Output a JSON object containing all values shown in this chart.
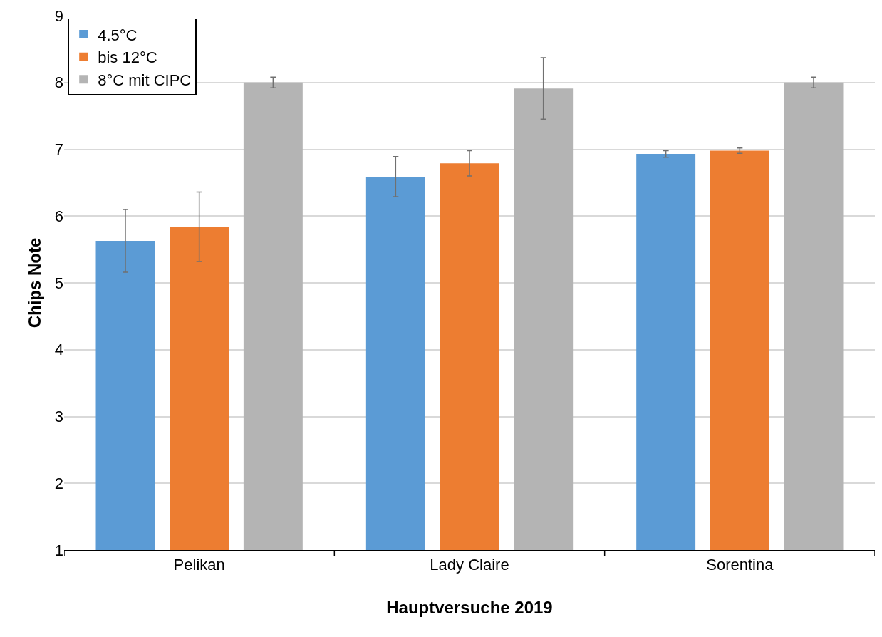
{
  "chart_data": {
    "type": "bar",
    "xlabel": "Hauptversuche 2019",
    "ylabel": "Chips Note",
    "categories": [
      "Pelikan",
      "Lady Claire",
      "Sorentina"
    ],
    "series": [
      {
        "name": "4.5°C",
        "color": "#5b9bd5",
        "values": [
          5.63,
          6.59,
          6.93
        ],
        "errors": [
          0.47,
          0.3,
          0.05
        ]
      },
      {
        "name": "bis 12°C",
        "color": "#ed7d31",
        "values": [
          5.84,
          6.79,
          6.98
        ],
        "errors": [
          0.52,
          0.19,
          0.04
        ]
      },
      {
        "name": "8°C mit CIPC",
        "color": "#b4b4b4",
        "values": [
          8.0,
          7.91,
          8.0
        ],
        "errors": [
          0.08,
          0.46,
          0.08
        ]
      }
    ],
    "ylim": [
      1,
      9
    ],
    "yticks": [
      1,
      2,
      3,
      4,
      5,
      6,
      7,
      8,
      9
    ],
    "grid": "y",
    "legend": "top left"
  }
}
